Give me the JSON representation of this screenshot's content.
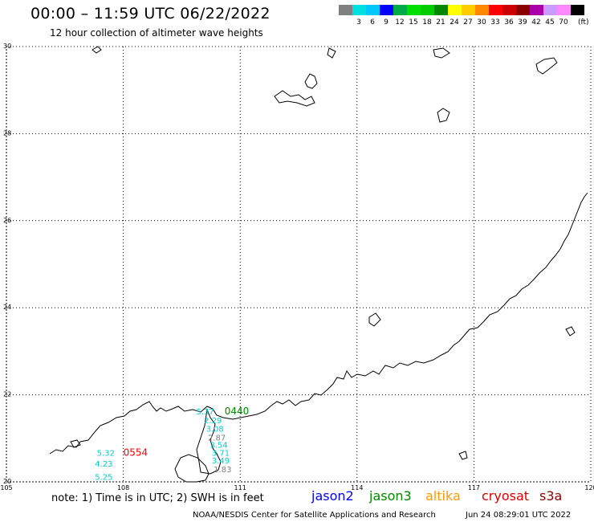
{
  "header": {
    "title": "00:00 – 11:59 UTC 06/22/2022",
    "subtitle": "12 hour collection of altimeter wave heights"
  },
  "color_scale": {
    "unit": "(ft)",
    "items": [
      {
        "label": "",
        "color": "#808080"
      },
      {
        "label": "3",
        "color": "#00e0e0"
      },
      {
        "label": "6",
        "color": "#00c8ff"
      },
      {
        "label": "9",
        "color": "#0000ff"
      },
      {
        "label": "12",
        "color": "#00aa44"
      },
      {
        "label": "15",
        "color": "#00e000"
      },
      {
        "label": "18",
        "color": "#00cc00"
      },
      {
        "label": "21",
        "color": "#008800"
      },
      {
        "label": "24",
        "color": "#ffff00"
      },
      {
        "label": "27",
        "color": "#ffcc00"
      },
      {
        "label": "30",
        "color": "#ff8800"
      },
      {
        "label": "33",
        "color": "#ff0000"
      },
      {
        "label": "36",
        "color": "#cc0000"
      },
      {
        "label": "39",
        "color": "#880000"
      },
      {
        "label": "42",
        "color": "#aa00aa"
      },
      {
        "label": "45",
        "color": "#cc99ff"
      },
      {
        "label": "70",
        "color": "#ff88ff"
      },
      {
        "label": "",
        "color": "#000000"
      }
    ]
  },
  "map": {
    "lat_labels": [
      "30",
      "28",
      "26",
      "24",
      "22",
      "20"
    ],
    "lon_labels": [
      "105",
      "108",
      "111",
      "114",
      "117",
      "120"
    ],
    "lon_range": [
      105,
      120
    ],
    "lat_range": [
      20,
      30
    ],
    "coastline_color": "#000000",
    "grid_color": "#000000"
  },
  "passes": [
    {
      "label": "0554",
      "color": "#ff0000",
      "lon": 108.0,
      "lat": 20.6
    },
    {
      "label": "0440",
      "color": "#008800",
      "lon": 110.6,
      "lat": 21.55
    }
  ],
  "observations": [
    {
      "value": "5.37",
      "color": "#00d0d0",
      "lon": 110.1,
      "lat": 21.55
    },
    {
      "value": "2.29",
      "color": "#00d0d0",
      "lon": 110.3,
      "lat": 21.35
    },
    {
      "value": "3.08",
      "color": "#00d0d0",
      "lon": 110.35,
      "lat": 21.15
    },
    {
      "value": "2.87",
      "color": "#808080",
      "lon": 110.4,
      "lat": 20.95
    },
    {
      "value": "3.54",
      "color": "#00d0d0",
      "lon": 110.45,
      "lat": 20.78
    },
    {
      "value": "3.71",
      "color": "#00d0d0",
      "lon": 110.5,
      "lat": 20.6
    },
    {
      "value": "3.49",
      "color": "#00d0d0",
      "lon": 110.5,
      "lat": 20.42
    },
    {
      "value": "1.83",
      "color": "#808080",
      "lon": 110.55,
      "lat": 20.22
    },
    {
      "value": "5.32",
      "color": "#00d0d0",
      "lon": 107.55,
      "lat": 20.6
    },
    {
      "value": "4.23",
      "color": "#00d0d0",
      "lon": 107.5,
      "lat": 20.35
    },
    {
      "value": "5.25",
      "color": "#00d0d0",
      "lon": 107.5,
      "lat": 20.05
    }
  ],
  "footer": {
    "note": "note: 1) Time is in UTC; 2) SWH is in feet",
    "satellites": [
      {
        "name": "jason2",
        "color": "#0000ff"
      },
      {
        "name": "jason3",
        "color": "#008800"
      },
      {
        "name": "altika",
        "color": "#ff9900"
      },
      {
        "name": "cryosat",
        "color": "#dd0000"
      },
      {
        "name": "s3a",
        "color": "#880000"
      }
    ],
    "credit": "NOAA/NESDIS Center for Satellite Applications and Research",
    "timestamp": "Jun 24 08:29:01 UTC 2022"
  }
}
